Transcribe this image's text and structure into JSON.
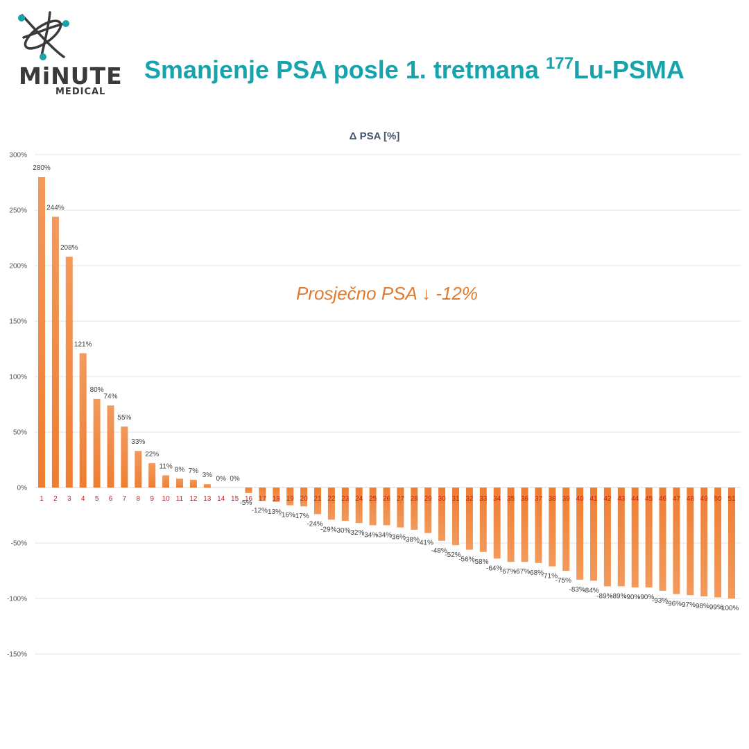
{
  "logo": {
    "word": "MiNUTE",
    "sub": "MEDICAL"
  },
  "header": {
    "title_pre": "Smanjenje PSA posle 1. tretmana ",
    "title_sup": "177",
    "title_post": "Lu-PSMA"
  },
  "colors": {
    "title": "#17a3ac",
    "bar": "#ef7d31",
    "annotation": "#e07a2e",
    "category_label": "#d21b1b"
  },
  "chart_data": {
    "type": "bar",
    "title": "Δ PSA [%]",
    "categories": [
      "1",
      "2",
      "3",
      "4",
      "5",
      "6",
      "7",
      "8",
      "9",
      "10",
      "11",
      "12",
      "13",
      "14",
      "15",
      "16",
      "17",
      "18",
      "19",
      "20",
      "21",
      "22",
      "23",
      "24",
      "25",
      "26",
      "27",
      "28",
      "29",
      "30",
      "31",
      "32",
      "33",
      "34",
      "35",
      "36",
      "37",
      "38",
      "39",
      "40",
      "41",
      "42",
      "43",
      "44",
      "45",
      "46",
      "47",
      "48",
      "49",
      "50",
      "51"
    ],
    "values": [
      280,
      244,
      208,
      121,
      80,
      74,
      55,
      33,
      22,
      11,
      8,
      7,
      3,
      0,
      0,
      -5,
      -12,
      -13,
      -16,
      -17,
      -24,
      -29,
      -30,
      -32,
      -34,
      -34,
      -36,
      -38,
      -41,
      -48,
      -52,
      -56,
      -58,
      -64,
      -67,
      -67,
      -68,
      -71,
      -75,
      -83,
      -84,
      -89,
      -89,
      -90,
      -90,
      -93,
      -96,
      -97,
      -98,
      -99,
      -100
    ],
    "data_labels": [
      "280%",
      "244%",
      "208%",
      "121%",
      "80%",
      "74%",
      "55%",
      "33%",
      "22%",
      "11%",
      "8%",
      "7%",
      "3%",
      "0%",
      "0%",
      "-5%",
      "-12%",
      "-13%",
      "-16%",
      "-17%",
      "-24%",
      "-29%",
      "-30%",
      "-32%",
      "-34%",
      "-34%",
      "-36%",
      "-38%",
      "-41%",
      "-48%",
      "-52%",
      "-56%",
      "-58%",
      "-64%",
      "-67%",
      "-67%",
      "-68%",
      "-71%",
      "-75%",
      "-83%",
      "-84%",
      "-89%",
      "-89%",
      "-90%",
      "-90%",
      "-93%",
      "-96%",
      "-97%",
      "-98%",
      "-99%",
      "-100%"
    ],
    "ylim": [
      -150,
      300
    ],
    "yticks": [
      300,
      250,
      200,
      150,
      100,
      50,
      0,
      -50,
      -100,
      -150
    ],
    "ytick_labels": [
      "300%",
      "250%",
      "200%",
      "150%",
      "100%",
      "50%",
      "0%",
      "-50%",
      "-100%",
      "-150%"
    ],
    "grid": true,
    "annotation": "Prosječno PSA ↓ -12%"
  }
}
